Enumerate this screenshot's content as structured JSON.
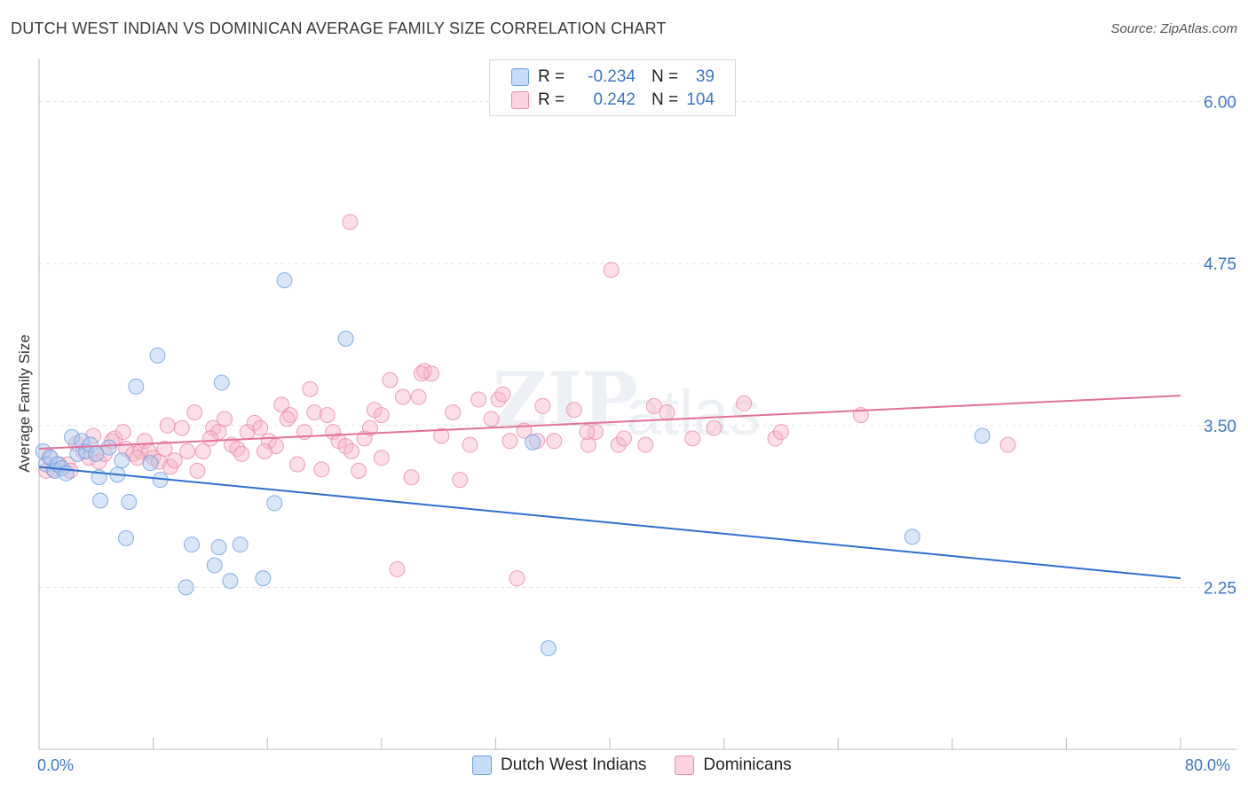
{
  "header": {
    "title": "DUTCH WEST INDIAN VS DOMINICAN AVERAGE FAMILY SIZE CORRELATION CHART",
    "source": "Source: ZipAtlas.com"
  },
  "legend_top": [
    {
      "r_label": "R =",
      "r_value": "-0.234",
      "n_label": "N =",
      "n_value": "39",
      "color": "#a9c8f0"
    },
    {
      "r_label": "R =",
      "r_value": "0.242",
      "n_label": "N =",
      "n_value": "104",
      "color": "#f7b6ca"
    }
  ],
  "legend_bottom": [
    {
      "label": "Dutch West Indians",
      "color": "#a9c8f0"
    },
    {
      "label": "Dominicans",
      "color": "#f7b6ca"
    }
  ],
  "chart_data": {
    "type": "scatter",
    "ylabel": "Average Family Size",
    "xlim": [
      0,
      80
    ],
    "ylim": [
      1.0,
      6.25
    ],
    "x_tick_labels": [
      {
        "value": 0,
        "label": "0.0%"
      },
      {
        "value": 80,
        "label": "80.0%"
      }
    ],
    "y_ticks": [
      {
        "value": 6.0,
        "label": "6.00"
      },
      {
        "value": 4.75,
        "label": "4.75"
      },
      {
        "value": 3.5,
        "label": "3.50"
      },
      {
        "value": 2.25,
        "label": "2.25"
      }
    ],
    "series": [
      {
        "name": "Dutch West Indians",
        "color": "#a9c8f0",
        "stroke": "#6a9de0",
        "trend": {
          "color": "#2f6fcf",
          "x0": 0,
          "y0": 3.18,
          "x1": 80,
          "y1": 2.32
        },
        "points": [
          [
            0.3,
            3.3
          ],
          [
            0.5,
            3.2
          ],
          [
            0.8,
            3.25
          ],
          [
            1.1,
            3.15
          ],
          [
            1.3,
            3.2
          ],
          [
            1.6,
            3.17
          ],
          [
            1.9,
            3.13
          ],
          [
            2.3,
            3.41
          ],
          [
            2.7,
            3.28
          ],
          [
            3.0,
            3.38
          ],
          [
            3.3,
            3.3
          ],
          [
            3.6,
            3.35
          ],
          [
            4.0,
            3.28
          ],
          [
            4.2,
            3.1
          ],
          [
            4.3,
            2.92
          ],
          [
            4.9,
            3.33
          ],
          [
            5.5,
            3.12
          ],
          [
            5.8,
            3.23
          ],
          [
            6.1,
            2.63
          ],
          [
            6.3,
            2.91
          ],
          [
            6.8,
            3.8
          ],
          [
            7.8,
            3.21
          ],
          [
            8.3,
            4.04
          ],
          [
            8.5,
            3.08
          ],
          [
            10.3,
            2.25
          ],
          [
            10.7,
            2.58
          ],
          [
            12.8,
            3.83
          ],
          [
            12.3,
            2.42
          ],
          [
            12.6,
            2.56
          ],
          [
            13.4,
            2.3
          ],
          [
            14.1,
            2.58
          ],
          [
            15.7,
            2.32
          ],
          [
            16.5,
            2.9
          ],
          [
            17.2,
            4.62
          ],
          [
            21.5,
            4.17
          ],
          [
            34.6,
            3.37
          ],
          [
            35.7,
            1.78
          ],
          [
            61.2,
            2.64
          ],
          [
            66.1,
            3.42
          ]
        ]
      },
      {
        "name": "Dominicans",
        "color": "#f7b6ca",
        "stroke": "#ea8aa8",
        "trend": {
          "color": "#e2719a",
          "x0": 0,
          "y0": 3.32,
          "x1": 80,
          "y1": 3.73
        },
        "points": [
          [
            0.5,
            3.15
          ],
          [
            0.7,
            3.26
          ],
          [
            1.0,
            3.16
          ],
          [
            1.4,
            3.2
          ],
          [
            2.0,
            3.2
          ],
          [
            2.6,
            3.36
          ],
          [
            3.1,
            3.3
          ],
          [
            3.5,
            3.25
          ],
          [
            4.2,
            3.22
          ],
          [
            4.6,
            3.28
          ],
          [
            5.1,
            3.38
          ],
          [
            5.3,
            3.4
          ],
          [
            5.9,
            3.45
          ],
          [
            6.1,
            3.32
          ],
          [
            6.6,
            3.28
          ],
          [
            7.1,
            3.3
          ],
          [
            7.4,
            3.38
          ],
          [
            7.7,
            3.3
          ],
          [
            8.0,
            3.25
          ],
          [
            8.4,
            3.22
          ],
          [
            8.8,
            3.32
          ],
          [
            9.2,
            3.18
          ],
          [
            9.5,
            3.23
          ],
          [
            10.0,
            3.48
          ],
          [
            10.4,
            3.3
          ],
          [
            10.9,
            3.6
          ],
          [
            11.1,
            3.15
          ],
          [
            11.5,
            3.3
          ],
          [
            12.2,
            3.48
          ],
          [
            12.6,
            3.45
          ],
          [
            13.0,
            3.55
          ],
          [
            13.5,
            3.35
          ],
          [
            13.9,
            3.32
          ],
          [
            14.2,
            3.28
          ],
          [
            14.6,
            3.45
          ],
          [
            15.1,
            3.52
          ],
          [
            15.5,
            3.48
          ],
          [
            16.1,
            3.38
          ],
          [
            16.6,
            3.34
          ],
          [
            17.0,
            3.66
          ],
          [
            17.6,
            3.58
          ],
          [
            18.1,
            3.2
          ],
          [
            18.6,
            3.45
          ],
          [
            19.0,
            3.78
          ],
          [
            19.3,
            3.6
          ],
          [
            19.8,
            3.16
          ],
          [
            20.2,
            3.58
          ],
          [
            20.6,
            3.45
          ],
          [
            21.0,
            3.38
          ],
          [
            21.5,
            3.34
          ],
          [
            21.9,
            3.3
          ],
          [
            22.4,
            3.15
          ],
          [
            22.8,
            3.4
          ],
          [
            23.2,
            3.48
          ],
          [
            23.5,
            3.62
          ],
          [
            24.0,
            3.25
          ],
          [
            24.6,
            3.85
          ],
          [
            25.1,
            2.39
          ],
          [
            25.5,
            3.72
          ],
          [
            26.1,
            3.1
          ],
          [
            26.6,
            3.72
          ],
          [
            27.0,
            3.92
          ],
          [
            27.5,
            3.9
          ],
          [
            28.2,
            3.42
          ],
          [
            29.0,
            3.6
          ],
          [
            29.5,
            3.08
          ],
          [
            30.2,
            3.35
          ],
          [
            30.8,
            3.7
          ],
          [
            31.7,
            3.55
          ],
          [
            32.2,
            3.7
          ],
          [
            32.5,
            3.74
          ],
          [
            33.0,
            3.38
          ],
          [
            33.5,
            2.32
          ],
          [
            34.0,
            3.46
          ],
          [
            34.9,
            3.38
          ],
          [
            35.3,
            3.65
          ],
          [
            37.5,
            3.62
          ],
          [
            38.5,
            3.35
          ],
          [
            39.0,
            3.45
          ],
          [
            40.6,
            3.35
          ],
          [
            41.0,
            3.4
          ],
          [
            42.5,
            3.35
          ],
          [
            43.1,
            3.65
          ],
          [
            44.0,
            3.6
          ],
          [
            47.3,
            3.48
          ],
          [
            49.4,
            3.67
          ],
          [
            51.6,
            3.4
          ],
          [
            52.0,
            3.45
          ],
          [
            57.6,
            3.58
          ],
          [
            67.9,
            3.35
          ],
          [
            21.8,
            5.07
          ],
          [
            40.1,
            4.7
          ],
          [
            12.0,
            3.4
          ],
          [
            17.4,
            3.55
          ],
          [
            24.0,
            3.58
          ],
          [
            26.8,
            3.9
          ],
          [
            9.0,
            3.5
          ],
          [
            3.8,
            3.42
          ],
          [
            45.8,
            3.4
          ],
          [
            6.9,
            3.25
          ],
          [
            2.2,
            3.15
          ],
          [
            15.8,
            3.3
          ],
          [
            36.1,
            3.38
          ],
          [
            38.4,
            3.45
          ]
        ]
      }
    ]
  }
}
